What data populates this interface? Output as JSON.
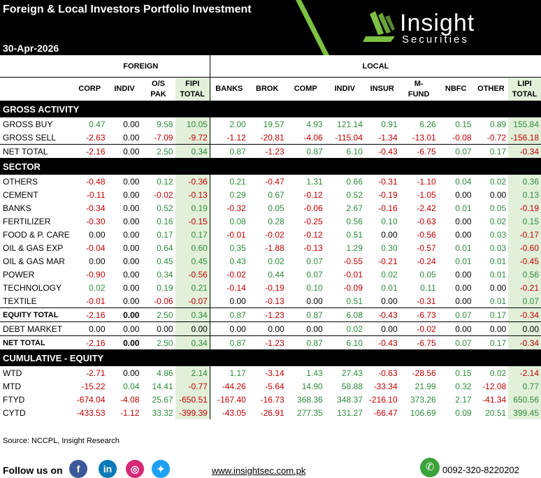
{
  "header": {
    "title": "Foreign & Local Investors Portfolio Investment",
    "date": "30-Apr-2026",
    "logo_word": "Insight",
    "logo_sub": "Securities"
  },
  "groups": {
    "foreign": "FOREIGN",
    "local": "LOCAL"
  },
  "columns": [
    {
      "l1": "CORP",
      "l2": ""
    },
    {
      "l1": "INDIV",
      "l2": ""
    },
    {
      "l1": "O/S",
      "l2": "PAK"
    },
    {
      "l1": "FIPI",
      "l2": "TOTAL"
    },
    {
      "l1": "BANKS",
      "l2": ""
    },
    {
      "l1": "BROK",
      "l2": ""
    },
    {
      "l1": "COMP",
      "l2": ""
    },
    {
      "l1": "INDIV",
      "l2": ""
    },
    {
      "l1": "INSUR",
      "l2": ""
    },
    {
      "l1": "M-",
      "l2": "FUND"
    },
    {
      "l1": "NBFC",
      "l2": ""
    },
    {
      "l1": "OTHER",
      "l2": ""
    },
    {
      "l1": "LIPI",
      "l2": "TOTAL"
    }
  ],
  "sections": [
    {
      "title": "GROSS ACTIVITY",
      "rows": [
        {
          "label": "GROSS BUY",
          "values": [
            "0.47",
            "0.00",
            "9.58",
            "10.05",
            "2.00",
            "19.57",
            "4.93",
            "121.14",
            "0.91",
            "6.26",
            "0.15",
            "0.89",
            "155.84"
          ]
        },
        {
          "label": "GROSS SELL",
          "values": [
            "-2.63",
            "0.00",
            "-7.09",
            "-9.72",
            "-1.12",
            "-20.81",
            "-4.06",
            "-115.04",
            "-1.34",
            "-13.01",
            "-0.08",
            "-0.72",
            "-156.18"
          ]
        },
        {
          "label": "NET TOTAL",
          "total": true,
          "values": [
            "-2.16",
            "0.00",
            "2.50",
            "0.34",
            "0.87",
            "-1.23",
            "0.87",
            "6.10",
            "-0.43",
            "-6.75",
            "0.07",
            "0.17",
            "-0.34"
          ]
        }
      ]
    },
    {
      "title": "SECTOR",
      "rows": [
        {
          "label": "OTHERS",
          "values": [
            "-0.48",
            "0.00",
            "0.12",
            "-0.36",
            "0.21",
            "-0.47",
            "1.31",
            "0.66",
            "-0.31",
            "-1.10",
            "0.04",
            "0.02",
            "0.36"
          ]
        },
        {
          "label": "CEMENT",
          "values": [
            "-0.11",
            "0.00",
            "-0.02",
            "-0.13",
            "0.29",
            "0.67",
            "-0.12",
            "0.52",
            "-0.19",
            "-1.05",
            "0.00",
            "0.00",
            "0.13"
          ]
        },
        {
          "label": "BANKS",
          "values": [
            "-0.34",
            "0.00",
            "0.52",
            "0.19",
            "-0.32",
            "0.05",
            "-0.06",
            "2.67",
            "-0.16",
            "-2.42",
            "0.01",
            "0.05",
            "-0.19"
          ]
        },
        {
          "label": "FERTILIZER",
          "values": [
            "-0.30",
            "0.00",
            "0.16",
            "-0.15",
            "0.08",
            "0.28",
            "-0.25",
            "0.56",
            "0.10",
            "-0.63",
            "0.00",
            "0.02",
            "0.15"
          ]
        },
        {
          "label": "FOOD & P. CARE",
          "values": [
            "0.00",
            "0.00",
            "0.17",
            "0.17",
            "-0.01",
            "-0.02",
            "-0.12",
            "0.51",
            "0.00",
            "-0.56",
            "0.00",
            "0.03",
            "-0.17"
          ]
        },
        {
          "label": "OIL & GAS EXP",
          "values": [
            "-0.04",
            "0.00",
            "0.64",
            "0.60",
            "0.35",
            "-1.88",
            "-0.13",
            "1.29",
            "0.30",
            "-0.57",
            "0.01",
            "0.03",
            "-0.60"
          ]
        },
        {
          "label": "OIL & GAS MAR",
          "values": [
            "0.00",
            "0.00",
            "0.45",
            "0.45",
            "0.43",
            "0.02",
            "0.07",
            "-0.55",
            "-0.21",
            "-0.24",
            "0.01",
            "0.01",
            "-0.45"
          ]
        },
        {
          "label": "POWER",
          "values": [
            "-0.90",
            "0.00",
            "0.34",
            "-0.56",
            "-0.02",
            "0.44",
            "0.07",
            "-0.01",
            "0.02",
            "0.05",
            "0.00",
            "0.01",
            "0.56"
          ]
        },
        {
          "label": "TECHNOLOGY",
          "values": [
            "0.02",
            "0.00",
            "0.19",
            "0.21",
            "-0.14",
            "-0.19",
            "0.10",
            "-0.09",
            "0.01",
            "0.11",
            "0.00",
            "0.00",
            "-0.21"
          ]
        },
        {
          "label": "TEXTILE",
          "values": [
            "-0.01",
            "0.00",
            "-0.06",
            "-0.07",
            "0.00",
            "-0.13",
            "0.00",
            "0.51",
            "0.00",
            "-0.31",
            "0.00",
            "0.01",
            "0.07"
          ]
        },
        {
          "label": "EQUITY TOTAL",
          "total": true,
          "bold": true,
          "values": [
            "-2.16",
            "0.00",
            "2.50",
            "0.34",
            "0.87",
            "-1.23",
            "0.87",
            "6.08",
            "-0.43",
            "-6.73",
            "0.07",
            "0.17",
            "-0.34"
          ]
        },
        {
          "label": "DEBT MARKET",
          "total": true,
          "values": [
            "0.00",
            "0.00",
            "0.00",
            "0.00",
            "0.00",
            "0.00",
            "0.00",
            "0.02",
            "0.00",
            "-0.02",
            "0.00",
            "0.00",
            "0.00"
          ]
        },
        {
          "label": "NET TOTAL",
          "total": true,
          "bold": true,
          "values": [
            "-2.16",
            "0.00",
            "2.50",
            "0.34",
            "0.87",
            "-1.23",
            "0.87",
            "6.10",
            "-0.43",
            "-6.75",
            "0.07",
            "0.17",
            "-0.34"
          ]
        }
      ]
    },
    {
      "title": "CUMULATIVE  - EQUITY",
      "rows": [
        {
          "label": "WTD",
          "values": [
            "-2.71",
            "0.00",
            "4.86",
            "2.14",
            "1.17",
            "-3.14",
            "1.43",
            "27.43",
            "-0.63",
            "-28.56",
            "0.15",
            "0.02",
            "-2.14"
          ]
        },
        {
          "label": "MTD",
          "values": [
            "-15.22",
            "0.04",
            "14.41",
            "-0.77",
            "-44.26",
            "-5.64",
            "14.90",
            "58.88",
            "-33.34",
            "21.99",
            "0.32",
            "-12.08",
            "0.77"
          ]
        },
        {
          "label": "FTYD",
          "values": [
            "-674.04",
            "-4.08",
            "25.67",
            "-650.51",
            "-167.40",
            "-16.73",
            "368.36",
            "348.37",
            "-216.10",
            "373.26",
            "2.17",
            "-41.34",
            "650.56"
          ]
        },
        {
          "label": "CYTD",
          "values": [
            "-433.53",
            "-1.12",
            "33.32",
            "-399.39",
            "-43.05",
            "-26.91",
            "277.35",
            "131.27",
            "-66.47",
            "106.69",
            "0.09",
            "20.51",
            "399.45"
          ]
        }
      ]
    }
  ],
  "source": "Source: NCCPL, Insight Research",
  "footer": {
    "follow": "Follow us on",
    "socials": [
      {
        "name": "facebook",
        "glyph": "f",
        "color": "#3b5998"
      },
      {
        "name": "linkedin",
        "glyph": "in",
        "color": "#0a7ab8"
      },
      {
        "name": "instagram",
        "glyph": "◎",
        "color": "#d62976"
      },
      {
        "name": "twitter",
        "glyph": "✦",
        "color": "#1da1f2"
      }
    ],
    "website": "www.insightsec.com.pk",
    "phone": "0092-320-8220202"
  },
  "colors": {
    "positive": "#2e8b3c",
    "negative": "#c00000",
    "accent": "#7dc142",
    "highlight": "#e2f0d9"
  }
}
